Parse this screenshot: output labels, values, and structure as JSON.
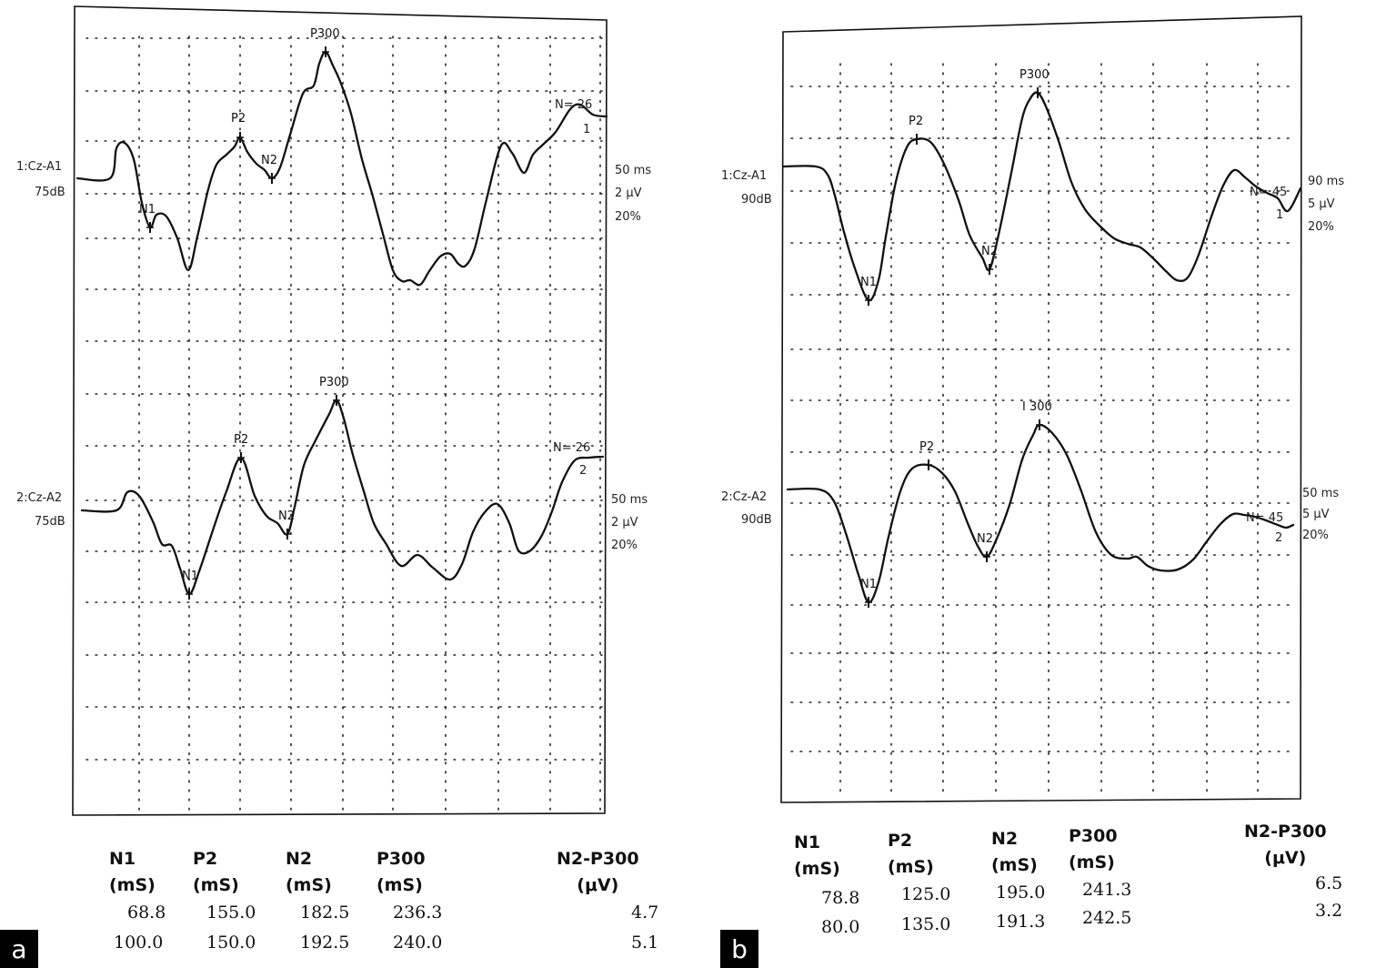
{
  "chart_data": [
    {
      "type": "line",
      "panel_label": "a",
      "traces": [
        {
          "channel": "1:Cz-A1",
          "intensity": "75dB",
          "settings": [
            "50 ms",
            "2 μV",
            "20%"
          ],
          "count": "N= 26",
          "index": "1",
          "peak_labels": [
            "N1",
            "P2",
            "N2",
            "P300"
          ]
        },
        {
          "channel": "2:Cz-A2",
          "intensity": "75dB",
          "settings": [
            "50 ms",
            "2 μV",
            "20%"
          ],
          "count": "N= 26",
          "index": "2",
          "peak_labels": [
            "N1",
            "P2",
            "N2",
            "P300"
          ]
        }
      ],
      "table": {
        "headers": [
          [
            "N1",
            "(mS)"
          ],
          [
            "P2",
            "(mS)"
          ],
          [
            "N2",
            "(mS)"
          ],
          [
            "P300",
            "(mS)"
          ],
          [
            "N2-P300",
            "(μV)"
          ]
        ],
        "rows": [
          [
            "68.8",
            "155.0",
            "182.5",
            "236.3",
            "4.7"
          ],
          [
            "100.0",
            "150.0",
            "192.5",
            "240.0",
            "5.1"
          ]
        ]
      }
    },
    {
      "type": "line",
      "panel_label": "b",
      "traces": [
        {
          "channel": "1:Cz-A1",
          "intensity": "90dB",
          "settings": [
            "90 ms",
            "5 μV",
            "20%"
          ],
          "count": "N= 45",
          "index": "1",
          "peak_labels": [
            "N1",
            "P2",
            "N2",
            "P300"
          ]
        },
        {
          "channel": "2:Cz-A2",
          "intensity": "90dB",
          "settings": [
            "50 ms",
            "5 μV",
            "20%"
          ],
          "count": "N= 45",
          "index": "2",
          "peak_labels": [
            "N1",
            "P2",
            "N2",
            "I 300"
          ]
        }
      ],
      "table": {
        "headers": [
          [
            "N1",
            "(mS)"
          ],
          [
            "P2",
            "(mS)"
          ],
          [
            "N2",
            "(mS)"
          ],
          [
            "P300",
            "(mS)"
          ],
          [
            "N2-P300",
            "(μV)"
          ]
        ],
        "rows": [
          [
            "78.8",
            "125.0",
            "195.0",
            "241.3",
            "6.5"
          ],
          [
            "80.0",
            "135.0",
            "191.3",
            "242.5",
            "3.2"
          ]
        ]
      }
    }
  ]
}
